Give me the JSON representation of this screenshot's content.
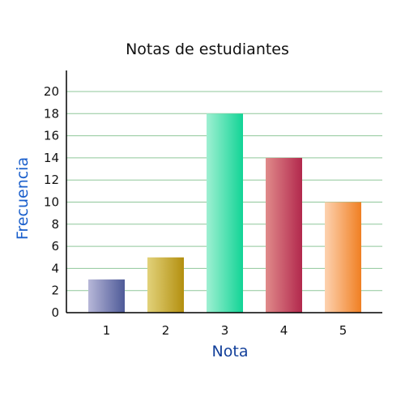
{
  "chart_data": {
    "type": "bar",
    "title": "Notas de estudiantes",
    "xlabel": "Nota",
    "ylabel": "Frecuencia",
    "categories": [
      "1",
      "2",
      "3",
      "4",
      "5"
    ],
    "values": [
      3,
      5,
      18,
      14,
      10
    ],
    "ylim": [
      0,
      20
    ],
    "yticks": [
      0,
      2,
      4,
      6,
      8,
      10,
      12,
      14,
      16,
      18,
      20
    ],
    "grid": true,
    "gridline_color": "#8fc79a",
    "xlabel_color": "#123f9a",
    "ylabel_color": "#1a5fcc",
    "bar_colors": [
      [
        "#b7b7d8",
        "#4e5a98"
      ],
      [
        "#e2d27a",
        "#b38f0f"
      ],
      [
        "#9ff0d2",
        "#12d496"
      ],
      [
        "#e08a8a",
        "#b2284d"
      ],
      [
        "#fdd2b0",
        "#f07f22"
      ]
    ]
  }
}
